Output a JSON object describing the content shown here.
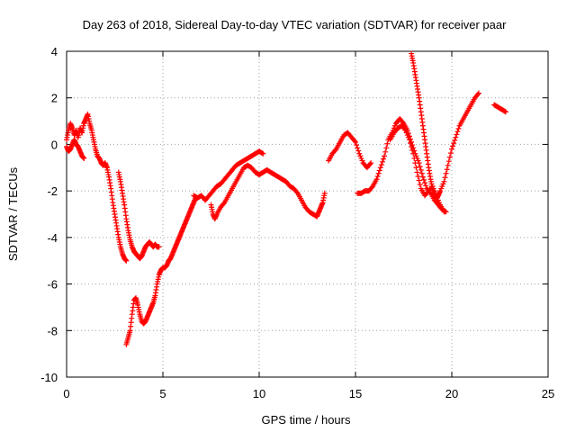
{
  "chart_data": {
    "type": "scatter",
    "title": "Day 263 of 2018, Sidereal Day-to-day VTEC variation (SDTVAR) for receiver paar",
    "xlabel": "GPS time / hours",
    "ylabel": "SDTVAR / TECUs",
    "xlim": [
      0,
      25
    ],
    "ylim": [
      -10,
      4
    ],
    "xticks": [
      0,
      5,
      10,
      15,
      20,
      25
    ],
    "yticks": [
      -10,
      -8,
      -6,
      -4,
      -2,
      0,
      2,
      4
    ],
    "grid": true,
    "marker": "+",
    "series": [
      {
        "name": "SDTVAR",
        "color": "#ff0000",
        "segments": [
          {
            "x": [
              0.0,
              0.1,
              0.2,
              0.3,
              0.4,
              0.5,
              0.6,
              0.7,
              0.8,
              0.9,
              1.0,
              1.1,
              1.2,
              1.3,
              1.4,
              1.5,
              1.6,
              1.7,
              1.8,
              1.9,
              2.0,
              2.1,
              2.2,
              2.3,
              2.4,
              2.5,
              2.6,
              2.7,
              2.8,
              2.9,
              3.0,
              3.1
            ],
            "y": [
              0.2,
              0.6,
              0.9,
              0.7,
              0.4,
              0.6,
              0.3,
              0.7,
              0.5,
              0.9,
              1.1,
              1.3,
              0.9,
              0.6,
              0.2,
              -0.2,
              -0.5,
              -0.6,
              -0.8,
              -0.9,
              -0.8,
              -1.0,
              -1.4,
              -1.9,
              -2.5,
              -3.0,
              -3.5,
              -4.0,
              -4.4,
              -4.7,
              -4.9,
              -5.0
            ]
          },
          {
            "x": [
              0.0,
              0.1,
              0.2,
              0.3,
              0.4,
              0.5,
              0.6,
              0.7,
              0.8,
              0.9
            ],
            "y": [
              -0.1,
              -0.3,
              -0.2,
              0.0,
              0.2,
              0.0,
              -0.1,
              -0.3,
              -0.5,
              -0.6
            ]
          },
          {
            "x": [
              2.7,
              2.8,
              2.9,
              3.0,
              3.1,
              3.2,
              3.3,
              3.4,
              3.5,
              3.6,
              3.7,
              3.8,
              3.9,
              4.0,
              4.1,
              4.2,
              4.3,
              4.4,
              4.5,
              4.6,
              4.7,
              4.8
            ],
            "y": [
              -1.2,
              -1.6,
              -2.1,
              -2.6,
              -3.2,
              -3.7,
              -4.1,
              -4.4,
              -4.6,
              -4.7,
              -4.8,
              -4.9,
              -4.8,
              -4.6,
              -4.4,
              -4.3,
              -4.2,
              -4.3,
              -4.4,
              -4.3,
              -4.4,
              -4.4
            ]
          },
          {
            "x": [
              3.1,
              3.2,
              3.3,
              3.4,
              3.5,
              3.6,
              3.7,
              3.8,
              3.9,
              4.0,
              4.1,
              4.2,
              4.3,
              4.4,
              4.5,
              4.6,
              4.7,
              4.8,
              4.9,
              5.0,
              5.1,
              5.2,
              5.3,
              5.4,
              5.5,
              5.6,
              5.7,
              5.8,
              5.9,
              6.0,
              6.1,
              6.2,
              6.3,
              6.4,
              6.5,
              6.6,
              6.7
            ],
            "y": [
              -8.6,
              -8.3,
              -8.0,
              -7.3,
              -6.7,
              -6.6,
              -6.9,
              -7.3,
              -7.6,
              -7.7,
              -7.6,
              -7.4,
              -7.2,
              -7.0,
              -6.8,
              -6.5,
              -6.0,
              -5.6,
              -5.4,
              -5.3,
              -5.3,
              -5.2,
              -5.0,
              -4.9,
              -4.7,
              -4.5,
              -4.3,
              -4.1,
              -3.9,
              -3.7,
              -3.5,
              -3.3,
              -3.1,
              -2.9,
              -2.7,
              -2.5,
              -2.3
            ]
          },
          {
            "x": [
              6.6,
              6.8,
              7.0,
              7.2,
              7.4,
              7.6,
              7.8,
              8.0,
              8.2,
              8.4,
              8.6,
              8.8,
              9.0,
              9.2,
              9.4,
              9.6,
              9.8,
              10.0,
              10.2
            ],
            "y": [
              -2.2,
              -2.3,
              -2.2,
              -2.4,
              -2.2,
              -2.0,
              -1.8,
              -1.7,
              -1.5,
              -1.3,
              -1.1,
              -0.9,
              -0.8,
              -0.7,
              -0.6,
              -0.5,
              -0.4,
              -0.3,
              -0.4
            ]
          },
          {
            "x": [
              7.5,
              7.6,
              7.7,
              7.8,
              8.0,
              8.2,
              8.4,
              8.6,
              8.8,
              9.0,
              9.2,
              9.4,
              9.6,
              9.8,
              10.0,
              10.2,
              10.4,
              10.6,
              10.8,
              11.0,
              11.2,
              11.4,
              11.6,
              11.8,
              12.0,
              12.2,
              12.4,
              12.6,
              12.8,
              13.0,
              13.1,
              13.2,
              13.3,
              13.4
            ],
            "y": [
              -2.6,
              -3.0,
              -3.2,
              -3.0,
              -2.7,
              -2.5,
              -2.2,
              -1.9,
              -1.6,
              -1.3,
              -1.0,
              -0.9,
              -1.0,
              -1.2,
              -1.3,
              -1.2,
              -1.1,
              -1.2,
              -1.3,
              -1.4,
              -1.5,
              -1.6,
              -1.8,
              -1.9,
              -2.1,
              -2.4,
              -2.7,
              -2.9,
              -3.0,
              -3.1,
              -2.9,
              -2.7,
              -2.5,
              -2.1
            ]
          },
          {
            "x": [
              13.6,
              13.8,
              14.0,
              14.2,
              14.4,
              14.6,
              14.8,
              15.0,
              15.2,
              15.4,
              15.6,
              15.8
            ],
            "y": [
              -0.7,
              -0.4,
              -0.2,
              0.1,
              0.4,
              0.5,
              0.3,
              0.1,
              -0.4,
              -0.8,
              -1.0,
              -0.8
            ]
          },
          {
            "x": [
              15.1,
              15.3,
              15.5,
              15.7,
              15.9,
              16.1,
              16.3,
              16.5,
              16.7,
              16.9,
              17.1,
              17.3,
              17.5,
              17.7,
              17.9,
              18.1,
              18.3,
              18.5,
              18.7,
              18.9,
              19.1,
              19.3,
              19.5,
              19.7
            ],
            "y": [
              -2.1,
              -2.1,
              -2.0,
              -2.0,
              -1.8,
              -1.5,
              -1.0,
              -0.5,
              0.2,
              0.5,
              0.9,
              1.1,
              0.9,
              0.6,
              0.1,
              -0.4,
              -0.8,
              -1.4,
              -1.9,
              -2.1,
              -2.4,
              -2.6,
              -2.8,
              -2.9
            ]
          },
          {
            "x": [
              16.8,
              17.0,
              17.2,
              17.4,
              17.6,
              17.8,
              18.0,
              18.2,
              18.4,
              18.6,
              18.8,
              19.0,
              19.2,
              19.4,
              19.6
            ],
            "y": [
              0.2,
              0.5,
              0.7,
              0.8,
              0.6,
              0.2,
              -0.4,
              -1.2,
              -1.9,
              -2.2,
              -2.0,
              -1.8,
              -2.2,
              -2.6,
              -2.9
            ]
          },
          {
            "x": [
              17.9,
              18.0,
              18.1,
              18.2,
              18.3,
              18.4,
              18.5,
              18.6,
              18.7,
              18.8,
              18.9,
              19.0,
              19.1,
              19.2,
              19.3,
              19.4,
              19.6,
              19.8,
              20.0,
              20.2,
              20.4,
              20.6,
              20.8,
              21.0,
              21.2,
              21.4
            ],
            "y": [
              3.9,
              3.5,
              3.0,
              2.5,
              2.0,
              1.4,
              0.8,
              0.2,
              -0.4,
              -1.0,
              -1.5,
              -1.9,
              -2.2,
              -2.3,
              -2.2,
              -2.0,
              -1.6,
              -0.9,
              -0.2,
              0.3,
              0.8,
              1.1,
              1.4,
              1.7,
              2.0,
              2.2
            ]
          },
          {
            "x": [
              22.2,
              22.4,
              22.6,
              22.8
            ],
            "y": [
              1.7,
              1.6,
              1.5,
              1.4
            ]
          }
        ]
      }
    ]
  }
}
